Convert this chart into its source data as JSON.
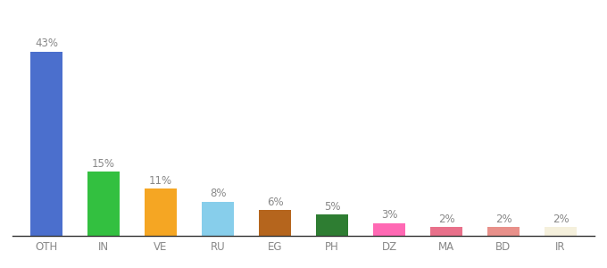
{
  "categories": [
    "OTH",
    "IN",
    "VE",
    "RU",
    "EG",
    "PH",
    "DZ",
    "MA",
    "BD",
    "IR"
  ],
  "values": [
    43,
    15,
    11,
    8,
    6,
    5,
    3,
    2,
    2,
    2
  ],
  "bar_colors": [
    "#4b6fcd",
    "#33c040",
    "#f5a623",
    "#87ceeb",
    "#b5651d",
    "#2e7d32",
    "#ff69b4",
    "#e8708a",
    "#e8908a",
    "#f5f0dc"
  ],
  "background_color": "#ffffff",
  "label_fontsize": 8.5,
  "tick_fontsize": 8.5,
  "label_color": "#888888",
  "tick_color": "#888888",
  "bar_width": 0.55,
  "ylim": [
    0,
    50
  ]
}
